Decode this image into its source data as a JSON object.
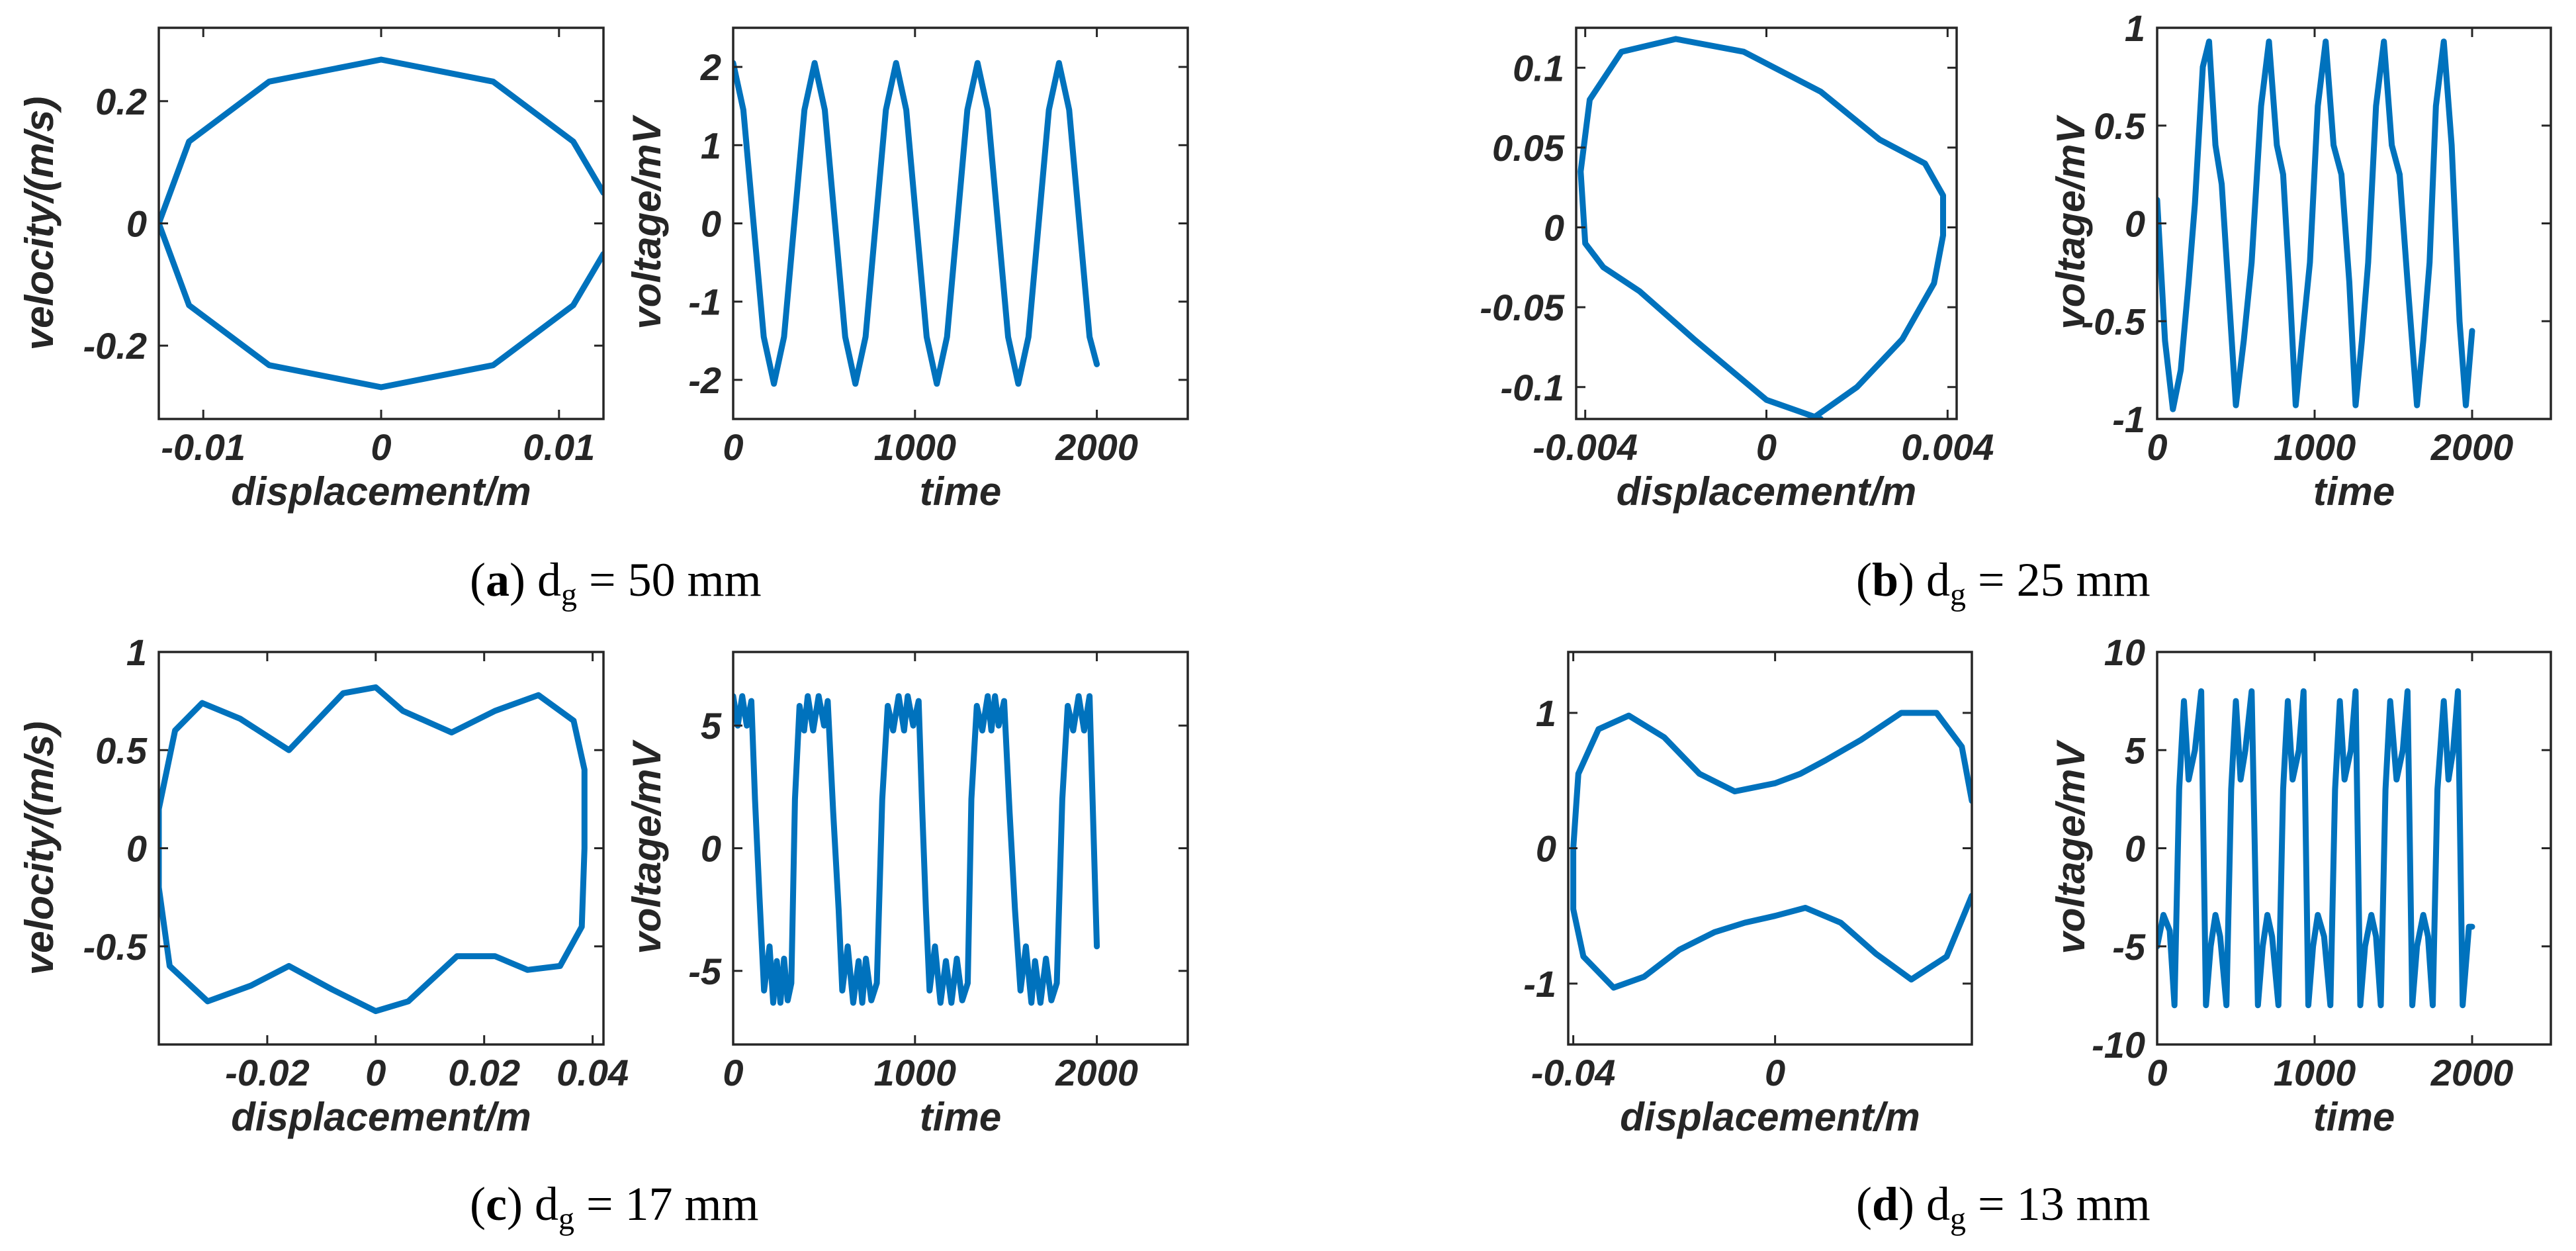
{
  "figure": {
    "captions": [
      {
        "letter": "a",
        "text": "d",
        "sub": "g",
        "rest": " = 50 mm"
      },
      {
        "letter": "b",
        "text": "d",
        "sub": "g",
        "rest": " = 25 mm"
      },
      {
        "letter": "c",
        "text": "d",
        "sub": "g",
        "rest": " = 17 mm"
      },
      {
        "letter": "d",
        "text": "d",
        "sub": "g",
        "rest": " = 13 mm"
      }
    ]
  },
  "chart_data": [
    {
      "id": "a-phase",
      "type": "line",
      "panel": "a",
      "kind": "phase",
      "title": "",
      "xlabel": "displacement/m",
      "ylabel": "velocity/(m/s)",
      "xlim": [
        -0.0125,
        0.0125
      ],
      "ylim": [
        -0.32,
        0.32
      ],
      "xticks": [
        -0.01,
        0,
        0.01
      ],
      "xtick_labels": [
        "-0.01",
        "0",
        "0.01"
      ],
      "yticks": [
        -0.2,
        0,
        0.2
      ],
      "ytick_labels": [
        "-0.2",
        "0",
        "0.2"
      ],
      "series": [
        {
          "name": "trajectory",
          "color": "#0072BD",
          "x": [
            0.0125,
            0.0108,
            0.0063,
            0.0,
            -0.0063,
            -0.0108,
            -0.0125,
            -0.0108,
            -0.0063,
            0.0,
            0.0063,
            0.0108,
            0.0125
          ],
          "y": [
            0.05,
            0.134,
            0.232,
            0.268,
            0.232,
            0.134,
            0.0,
            -0.134,
            -0.232,
            -0.268,
            -0.232,
            -0.134,
            -0.05
          ]
        }
      ]
    },
    {
      "id": "a-voltage",
      "type": "line",
      "panel": "a",
      "kind": "time",
      "title": "",
      "xlabel": "time",
      "ylabel": "voltage/mV",
      "xlim": [
        0,
        2500
      ],
      "ylim": [
        -2.5,
        2.5
      ],
      "xticks": [
        0,
        1000,
        2000
      ],
      "xtick_labels": [
        "0",
        "1000",
        "2000"
      ],
      "yticks": [
        -2,
        -1,
        0,
        1,
        2
      ],
      "ytick_labels": [
        "-2",
        "-1",
        "0",
        "1",
        "2"
      ],
      "series": [
        {
          "name": "voltage",
          "color": "#0072BD",
          "x": [
            0,
            56,
            112,
            168,
            224,
            280,
            336,
            392,
            448,
            504,
            560,
            616,
            672,
            728,
            784,
            840,
            896,
            952,
            1008,
            1064,
            1120,
            1176,
            1232,
            1288,
            1344,
            1400,
            1456,
            1512,
            1568,
            1624,
            1680,
            1736,
            1792,
            1848,
            1904,
            1960,
            2000
          ],
          "y": [
            2.05,
            1.45,
            0.0,
            -1.45,
            -2.05,
            -1.45,
            0.0,
            1.45,
            2.05,
            1.45,
            0.0,
            -1.45,
            -2.05,
            -1.45,
            0.0,
            1.45,
            2.05,
            1.45,
            0.0,
            -1.45,
            -2.05,
            -1.45,
            0.0,
            1.45,
            2.05,
            1.45,
            0.0,
            -1.45,
            -2.05,
            -1.45,
            0.0,
            1.45,
            2.05,
            1.45,
            0.0,
            -1.45,
            -1.8
          ]
        }
      ]
    },
    {
      "id": "b-phase",
      "type": "line",
      "panel": "b",
      "kind": "phase",
      "title": "",
      "xlabel": "displacement/m",
      "ylabel": "velocity/(m/s)",
      "xlim": [
        -0.0042,
        0.0042
      ],
      "ylim": [
        -0.12,
        0.125
      ],
      "xticks": [
        -0.004,
        0,
        0.004
      ],
      "xtick_labels": [
        "-0.004",
        "0",
        "0.004"
      ],
      "yticks": [
        -0.1,
        -0.05,
        0,
        0.05,
        0.1
      ],
      "ytick_labels": [
        "-0.1",
        "-0.05",
        "0",
        "0.05",
        "0.1"
      ],
      "series": [
        {
          "name": "trajectory",
          "color": "#0072BD",
          "x": [
            0.001,
            0.002,
            0.003,
            0.0037,
            0.0039,
            0.0039,
            0.0035,
            0.0025,
            0.0012,
            -0.0005,
            -0.002,
            -0.0032,
            -0.0039,
            -0.0041,
            -0.004,
            -0.0036,
            -0.0028,
            -0.0016,
            0.0,
            0.0012
          ],
          "y": [
            -0.12,
            -0.1,
            -0.07,
            -0.035,
            -0.005,
            0.02,
            0.04,
            0.055,
            0.085,
            0.11,
            0.118,
            0.11,
            0.08,
            0.035,
            -0.01,
            -0.025,
            -0.04,
            -0.07,
            -0.108,
            -0.12
          ]
        }
      ]
    },
    {
      "id": "b-voltage",
      "type": "line",
      "panel": "b",
      "kind": "time",
      "title": "",
      "xlabel": "time",
      "ylabel": "voltage/mV",
      "xlim": [
        0,
        2500
      ],
      "ylim": [
        -1,
        1
      ],
      "xticks": [
        0,
        1000,
        2000
      ],
      "xtick_labels": [
        "0",
        "1000",
        "2000"
      ],
      "yticks": [
        -1,
        -0.5,
        0,
        0.5,
        1
      ],
      "ytick_labels": [
        "-1",
        "-0.5",
        "0",
        "0.5",
        "1"
      ],
      "series": [
        {
          "name": "voltage",
          "color": "#0072BD",
          "x": [
            0,
            50,
            100,
            150,
            200,
            240,
            290,
            330,
            370,
            410,
            450,
            500,
            550,
            600,
            660,
            710,
            760,
            800,
            840,
            880,
            920,
            970,
            1020,
            1070,
            1120,
            1170,
            1220,
            1260,
            1300,
            1340,
            1390,
            1440,
            1490,
            1540,
            1590,
            1650,
            1690,
            1730,
            1770,
            1820,
            1870,
            1920,
            1960,
            2000
          ],
          "y": [
            0.12,
            -0.6,
            -0.95,
            -0.75,
            -0.3,
            0.1,
            0.8,
            0.93,
            0.4,
            0.2,
            -0.3,
            -0.93,
            -0.6,
            -0.2,
            0.6,
            0.93,
            0.4,
            0.25,
            -0.3,
            -0.93,
            -0.6,
            -0.2,
            0.6,
            0.93,
            0.4,
            0.25,
            -0.3,
            -0.93,
            -0.6,
            -0.2,
            0.6,
            0.93,
            0.4,
            0.25,
            -0.3,
            -0.93,
            -0.6,
            -0.2,
            0.6,
            0.93,
            0.4,
            -0.5,
            -0.93,
            -0.55
          ]
        }
      ]
    },
    {
      "id": "c-phase",
      "type": "line",
      "panel": "c",
      "kind": "phase",
      "title": "",
      "xlabel": "displacement/m",
      "ylabel": "velocity/(m/s)",
      "xlim": [
        -0.04,
        0.042
      ],
      "ylim": [
        -1,
        1
      ],
      "xticks": [
        -0.02,
        0,
        0.02,
        0.04
      ],
      "xtick_labels": [
        "-0.02",
        "0",
        "0.02",
        "0.04"
      ],
      "yticks": [
        -0.5,
        0,
        0.5,
        1
      ],
      "ytick_labels": [
        "-0.5",
        "0",
        "0.5",
        "1"
      ],
      "series": [
        {
          "name": "trajectory",
          "color": "#0072BD",
          "x": [
            0.0385,
            0.0385,
            0.0365,
            0.03,
            0.022,
            0.014,
            0.005,
            0.0,
            -0.006,
            -0.016,
            -0.025,
            -0.032,
            -0.037,
            -0.04,
            -0.04,
            -0.038,
            -0.031,
            -0.023,
            -0.016,
            -0.008,
            0.0,
            0.006,
            0.015,
            0.022,
            0.028,
            0.034,
            0.038,
            0.0385
          ],
          "y": [
            0.0,
            0.4,
            0.65,
            0.78,
            0.7,
            0.59,
            0.7,
            0.82,
            0.79,
            0.5,
            0.66,
            0.74,
            0.6,
            0.2,
            -0.2,
            -0.6,
            -0.78,
            -0.7,
            -0.6,
            -0.72,
            -0.83,
            -0.78,
            -0.55,
            -0.55,
            -0.62,
            -0.6,
            -0.4,
            0.0
          ]
        }
      ]
    },
    {
      "id": "c-voltage",
      "type": "line",
      "panel": "c",
      "kind": "time",
      "title": "",
      "xlabel": "time",
      "ylabel": "voltage/mV",
      "xlim": [
        0,
        2500
      ],
      "ylim": [
        -8,
        8
      ],
      "xticks": [
        0,
        1000,
        2000
      ],
      "xtick_labels": [
        "0",
        "1000",
        "2000"
      ],
      "yticks": [
        -5,
        0,
        5
      ],
      "ytick_labels": [
        "-5",
        "0",
        "5"
      ],
      "series": [
        {
          "name": "voltage",
          "color": "#0072BD",
          "x": [
            0,
            25,
            50,
            75,
            100,
            120,
            145,
            170,
            200,
            220,
            240,
            260,
            280,
            300,
            320,
            340,
            365,
            390,
            410,
            440,
            470,
            500,
            520,
            550,
            580,
            600,
            630,
            660,
            690,
            710,
            730,
            760,
            790,
            820,
            850,
            880,
            910,
            940,
            960,
            990,
            1020,
            1040,
            1060,
            1080,
            1110,
            1140,
            1170,
            1200,
            1230,
            1260,
            1290,
            1310,
            1340,
            1370,
            1400,
            1420,
            1440,
            1460,
            1490,
            1520,
            1550,
            1580,
            1610,
            1640,
            1660,
            1690,
            1720,
            1750,
            1780,
            1810,
            1840,
            1870,
            1900,
            1930,
            1960,
            2000
          ],
          "y": [
            6.2,
            5.0,
            6.2,
            5.0,
            6.0,
            2.0,
            -2.0,
            -5.8,
            -4.0,
            -6.3,
            -4.6,
            -6.3,
            -4.5,
            -6.2,
            -5.5,
            2.0,
            5.8,
            4.8,
            6.2,
            4.8,
            6.2,
            5.0,
            6.0,
            1.5,
            -2.5,
            -5.8,
            -4.0,
            -6.3,
            -4.6,
            -6.3,
            -4.5,
            -6.2,
            -5.5,
            2.0,
            5.8,
            4.8,
            6.2,
            4.8,
            6.2,
            5.0,
            6.0,
            1.5,
            -2.5,
            -5.8,
            -4.0,
            -6.3,
            -4.6,
            -6.3,
            -4.5,
            -6.2,
            -5.5,
            2.0,
            5.8,
            4.8,
            6.2,
            4.8,
            6.2,
            5.0,
            6.0,
            1.5,
            -2.5,
            -5.8,
            -4.0,
            -6.3,
            -4.6,
            -6.3,
            -4.5,
            -6.2,
            -5.5,
            2.0,
            5.8,
            4.8,
            6.2,
            4.8,
            6.2,
            -4.0
          ]
        }
      ]
    },
    {
      "id": "d-phase",
      "type": "line",
      "panel": "d",
      "kind": "phase",
      "title": "",
      "xlabel": "displacement/m",
      "ylabel": "velocity/(m/s)",
      "xlim": [
        -0.041,
        0.039
      ],
      "ylim": [
        -1.45,
        1.45
      ],
      "xticks": [
        -0.04,
        0
      ],
      "xtick_labels": [
        "-0.04",
        "0"
      ],
      "yticks": [
        -1,
        0,
        1
      ],
      "ytick_labels": [
        "-1",
        "0",
        "1"
      ],
      "series": [
        {
          "name": "trajectory",
          "color": "#0072BD",
          "x": [
            0.039,
            0.037,
            0.032,
            0.025,
            0.017,
            0.01,
            0.005,
            0.0,
            -0.008,
            -0.015,
            -0.022,
            -0.029,
            -0.035,
            -0.039,
            -0.04,
            -0.04,
            -0.038,
            -0.032,
            -0.026,
            -0.019,
            -0.012,
            -0.006,
            0.0,
            0.006,
            0.013,
            0.02,
            0.027,
            0.034,
            0.039
          ],
          "y": [
            0.35,
            0.75,
            1.0,
            1.0,
            0.8,
            0.65,
            0.55,
            0.48,
            0.42,
            0.55,
            0.82,
            0.98,
            0.88,
            0.55,
            0.0,
            -0.45,
            -0.8,
            -1.03,
            -0.95,
            -0.75,
            -0.62,
            -0.55,
            -0.5,
            -0.44,
            -0.55,
            -0.78,
            -0.97,
            -0.8,
            -0.35
          ]
        }
      ]
    },
    {
      "id": "d-voltage",
      "type": "line",
      "panel": "d",
      "kind": "time",
      "title": "",
      "xlabel": "time",
      "ylabel": "voltage/mV",
      "xlim": [
        0,
        2500
      ],
      "ylim": [
        -10,
        10
      ],
      "xticks": [
        0,
        1000,
        2000
      ],
      "xtick_labels": [
        "0",
        "1000",
        "2000"
      ],
      "yticks": [
        -10,
        -5,
        0,
        5,
        10
      ],
      "ytick_labels": [
        "-10",
        "-5",
        "0",
        "5",
        "10"
      ],
      "series": [
        {
          "name": "voltage",
          "color": "#0072BD",
          "x": [
            0,
            40,
            80,
            110,
            140,
            170,
            200,
            240,
            280,
            310,
            340,
            370,
            400,
            440,
            470,
            500,
            530,
            560,
            600,
            640,
            670,
            700,
            730,
            770,
            800,
            830,
            860,
            900,
            930,
            960,
            990,
            1020,
            1060,
            1100,
            1130,
            1160,
            1190,
            1230,
            1260,
            1290,
            1320,
            1360,
            1390,
            1420,
            1450,
            1480,
            1520,
            1560,
            1590,
            1620,
            1650,
            1690,
            1720,
            1750,
            1780,
            1820,
            1850,
            1880,
            1910,
            1940,
            1980,
            2000
          ],
          "y": [
            -5,
            -3.4,
            -4.2,
            -8.0,
            3.0,
            7.5,
            3.5,
            5.0,
            8.0,
            -8.0,
            -5.0,
            -3.4,
            -4.5,
            -8.0,
            3.0,
            7.5,
            3.5,
            5.0,
            8.0,
            -8.0,
            -5.0,
            -3.4,
            -4.5,
            -8.0,
            3.0,
            7.5,
            3.5,
            5.0,
            8.0,
            -8.0,
            -5.0,
            -3.4,
            -4.5,
            -8.0,
            3.0,
            7.5,
            3.5,
            5.0,
            8.0,
            -8.0,
            -5.0,
            -3.4,
            -4.5,
            -8.0,
            3.0,
            7.5,
            3.5,
            5.0,
            8.0,
            -8.0,
            -5.0,
            -3.4,
            -4.5,
            -8.0,
            3.0,
            7.5,
            3.5,
            5.0,
            8.0,
            -8.0,
            -4.0,
            -4.0
          ]
        }
      ]
    }
  ]
}
